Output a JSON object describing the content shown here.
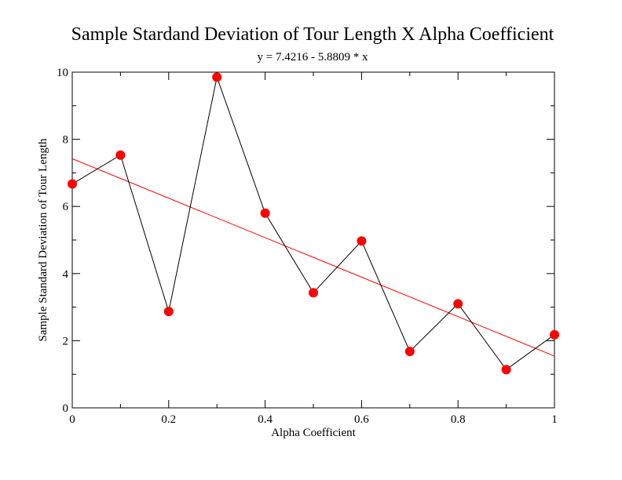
{
  "chart_data": {
    "type": "scatter",
    "title": "Sample Stardand Deviation of Tour Length X Alpha Coefficient",
    "subtitle": "y = 7.4216 - 5.8809 * x",
    "xlabel": "Alpha Coefficient",
    "ylabel": "Sample Standard Deviation of Tour Length",
    "xlim": [
      0,
      1
    ],
    "ylim": [
      0,
      10
    ],
    "x_ticks": [
      0,
      0.2,
      0.4,
      0.6,
      0.8,
      1
    ],
    "x_tick_labels": [
      "0",
      "0.2",
      "0.4",
      "0.6",
      "0.8",
      "1"
    ],
    "x_minor_ticks": [
      0.1,
      0.3,
      0.5,
      0.7,
      0.9
    ],
    "y_ticks": [
      0,
      2,
      4,
      6,
      8,
      10
    ],
    "y_tick_labels": [
      "0",
      "2",
      "4",
      "6",
      "8",
      "10"
    ],
    "y_minor_ticks": [
      1,
      3,
      5,
      7,
      9
    ],
    "grid": false,
    "series": [
      {
        "x": [
          0,
          0.1,
          0.2,
          0.3,
          0.4,
          0.5,
          0.6,
          0.7,
          0.8,
          0.9,
          1.0
        ],
        "y": [
          6.67,
          7.53,
          2.87,
          9.85,
          5.8,
          3.43,
          4.97,
          1.68,
          3.1,
          1.14,
          2.18
        ],
        "line_color": "#000000",
        "marker_color": "#ff0000"
      }
    ],
    "fit_line": {
      "intercept": 7.4216,
      "slope": -5.8809,
      "color": "#ff0000"
    }
  }
}
